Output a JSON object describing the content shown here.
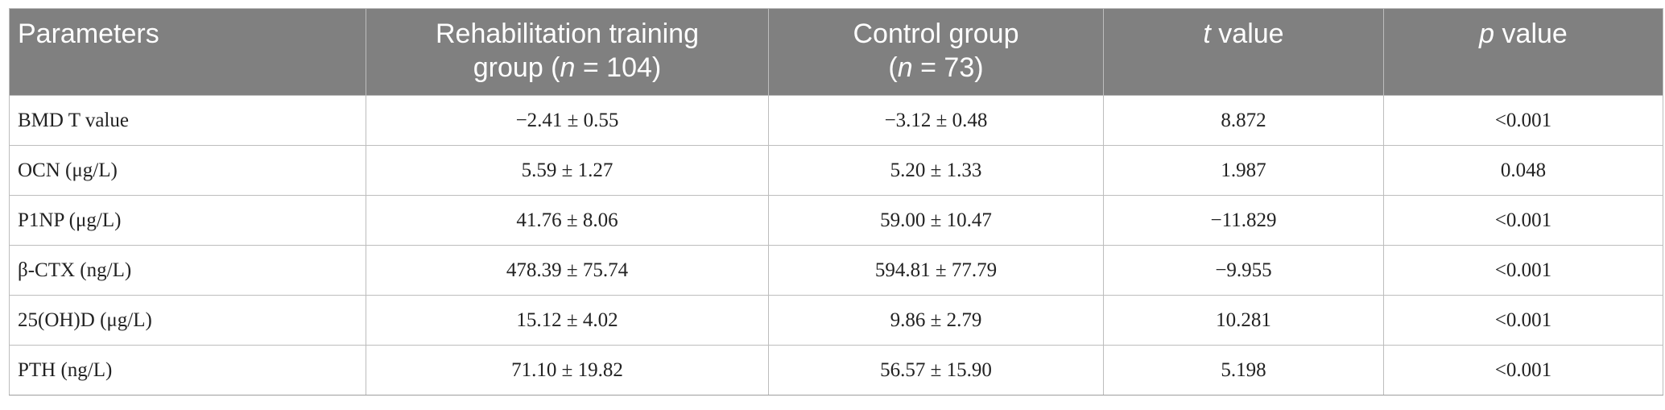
{
  "table": {
    "headers": [
      {
        "line1": "Parameters",
        "line2": ""
      },
      {
        "line1": "Rehabilitation training",
        "line2_pre": "group (",
        "line2_var": "n",
        "line2_post": " = 104)"
      },
      {
        "line1": "Control group",
        "line2_pre": "(",
        "line2_var": "n",
        "line2_post": " = 73)"
      },
      {
        "var": "t",
        "rest": " value"
      },
      {
        "var": "p",
        "rest": " value"
      }
    ],
    "rows": [
      [
        "BMD T value",
        "−2.41 ± 0.55",
        "−3.12 ± 0.48",
        "8.872",
        "<0.001"
      ],
      [
        "OCN (μg/L)",
        "5.59 ± 1.27",
        "5.20 ± 1.33",
        "1.987",
        "0.048"
      ],
      [
        "P1NP (μg/L)",
        "41.76 ± 8.06",
        "59.00 ± 10.47",
        "−11.829",
        "<0.001"
      ],
      [
        "β-CTX (ng/L)",
        "478.39 ± 75.74",
        "594.81 ± 77.79",
        "−9.955",
        "<0.001"
      ],
      [
        "25(OH)D (μg/L)",
        "15.12 ± 4.02",
        "9.86 ± 2.79",
        "10.281",
        "<0.001"
      ],
      [
        "PTH (ng/L)",
        "71.10 ± 19.82",
        "56.57 ± 15.90",
        "5.198",
        "<0.001"
      ]
    ]
  }
}
